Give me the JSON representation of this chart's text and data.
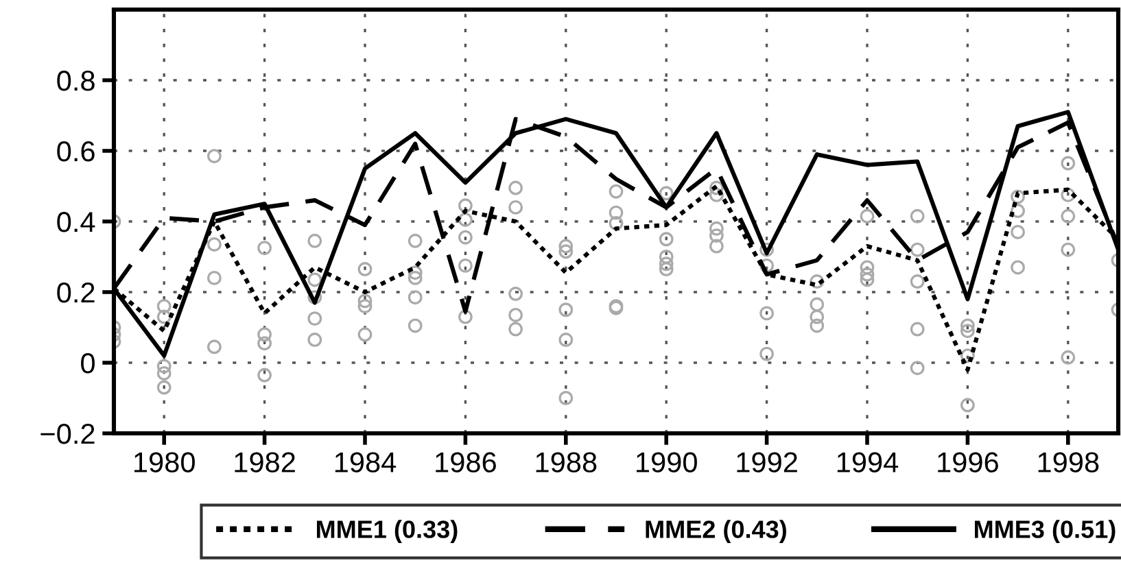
{
  "chart_data": {
    "type": "line",
    "xlim": [
      1979,
      1999
    ],
    "ylim": [
      -0.2,
      1.0
    ],
    "xticks": [
      1980,
      1982,
      1984,
      1986,
      1988,
      1990,
      1992,
      1994,
      1996,
      1998
    ],
    "yticks": [
      -0.2,
      0,
      0.2,
      0.4,
      0.6,
      0.8
    ],
    "grid": true,
    "legend": "bottom",
    "x": [
      1979,
      1980,
      1981,
      1982,
      1983,
      1984,
      1985,
      1986,
      1987,
      1988,
      1989,
      1990,
      1991,
      1992,
      1993,
      1994,
      1995,
      1996,
      1997,
      1998,
      1999
    ],
    "series": [
      {
        "type": "scatter",
        "color": "#aaaaaa",
        "marker": "circle",
        "x": [
          1979,
          1979,
          1979,
          1979,
          1980,
          1980,
          1980,
          1980,
          1980,
          1981,
          1981,
          1981,
          1981,
          1982,
          1982,
          1982,
          1982,
          1983,
          1983,
          1983,
          1983,
          1983,
          1984,
          1984,
          1984,
          1984,
          1985,
          1985,
          1985,
          1985,
          1985,
          1986,
          1986,
          1986,
          1986,
          1986,
          1987,
          1987,
          1987,
          1987,
          1987,
          1988,
          1988,
          1988,
          1988,
          1988,
          1989,
          1989,
          1989,
          1989,
          1989,
          1990,
          1990,
          1990,
          1990,
          1990,
          1991,
          1991,
          1991,
          1991,
          1991,
          1992,
          1992,
          1992,
          1992,
          1993,
          1993,
          1993,
          1993,
          1994,
          1994,
          1994,
          1994,
          1995,
          1995,
          1995,
          1995,
          1995,
          1996,
          1996,
          1996,
          1996,
          1997,
          1997,
          1997,
          1997,
          1998,
          1998,
          1998,
          1998,
          1998,
          1999,
          1999
        ],
        "values": [
          0.4,
          0.1,
          0.08,
          0.06,
          0.16,
          0.13,
          -0.01,
          -0.03,
          -0.07,
          0.585,
          0.335,
          0.24,
          0.045,
          0.325,
          0.08,
          0.055,
          -0.035,
          0.345,
          0.235,
          0.185,
          0.125,
          0.065,
          0.265,
          0.175,
          0.16,
          0.08,
          0.345,
          0.255,
          0.24,
          0.185,
          0.105,
          0.445,
          0.405,
          0.355,
          0.275,
          0.13,
          0.495,
          0.44,
          0.195,
          0.135,
          0.095,
          0.33,
          0.315,
          0.15,
          0.065,
          -0.1,
          0.485,
          0.425,
          0.395,
          0.16,
          0.155,
          0.48,
          0.35,
          0.3,
          0.28,
          0.265,
          0.495,
          0.475,
          0.38,
          0.36,
          0.33,
          0.32,
          0.275,
          0.14,
          0.025,
          0.23,
          0.165,
          0.13,
          0.105,
          0.415,
          0.27,
          0.25,
          0.235,
          0.415,
          0.32,
          0.23,
          0.095,
          -0.015,
          0.105,
          0.09,
          0.02,
          -0.12,
          0.47,
          0.43,
          0.37,
          0.27,
          0.565,
          0.475,
          0.415,
          0.32,
          0.015,
          0.29,
          0.15
        ]
      },
      {
        "name": "MME1 (0.33)",
        "color": "#000000",
        "line_style": "dotted",
        "values": [
          0.21,
          0.09,
          0.4,
          0.14,
          0.27,
          0.2,
          0.27,
          0.43,
          0.4,
          0.255,
          0.38,
          0.39,
          0.5,
          0.25,
          0.22,
          0.33,
          0.29,
          -0.02,
          0.48,
          0.49,
          0.35
        ]
      },
      {
        "name": "MME2 (0.43)",
        "color": "#000000",
        "line_style": "dashed",
        "values": [
          0.21,
          0.41,
          0.4,
          0.44,
          0.46,
          0.39,
          0.62,
          0.145,
          0.69,
          0.64,
          0.52,
          0.44,
          0.55,
          0.25,
          0.29,
          0.46,
          0.29,
          0.37,
          0.61,
          0.68,
          0.33
        ]
      },
      {
        "name": "MME3 (0.51)",
        "color": "#000000",
        "line_style": "solid",
        "values": [
          0.21,
          0.02,
          0.42,
          0.45,
          0.17,
          0.55,
          0.65,
          0.51,
          0.65,
          0.69,
          0.65,
          0.44,
          0.65,
          0.31,
          0.59,
          0.56,
          0.57,
          0.18,
          0.67,
          0.71,
          0.32
        ]
      }
    ]
  }
}
